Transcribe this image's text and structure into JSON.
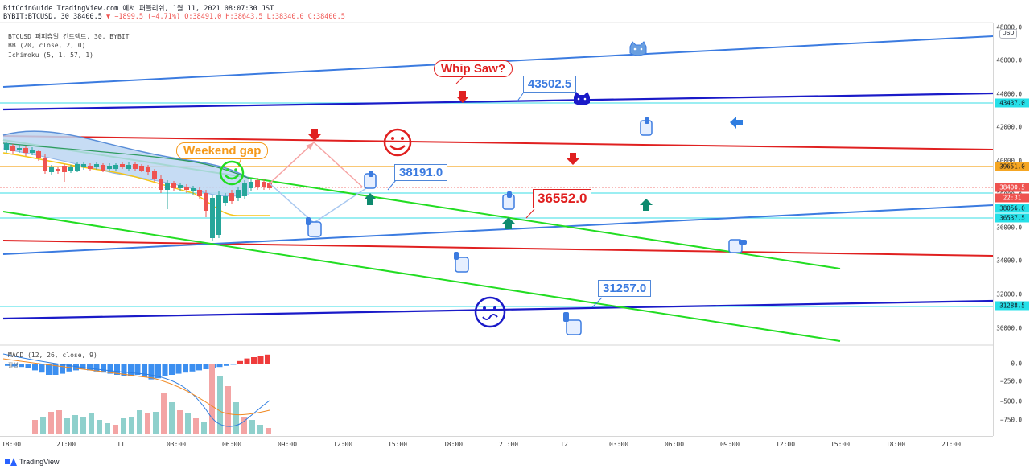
{
  "header": {
    "line1": "BitCoinGuide TradingView.com 에서 퍼블리쉬, 1월 11, 2021 08:07:30 JST",
    "symbol": "BYBIT:BTCUSD, 30",
    "last": "38400.5",
    "change": "−1899.5 (−4.71%)",
    "o": "O:38491.0",
    "h": "H:38643.5",
    "l": "L:38340.0",
    "c": "C:38400.5"
  },
  "legend": {
    "main": "BTCUSD 퍼피츄얼 컨트랙트, 30, BYBIT",
    "bb": "BB (20, close, 2, 0)",
    "ichimoku": "Ichimoku (5, 1, 57, 1)"
  },
  "macd": {
    "label": "MACD (12, 26, close, 9)",
    "sub": "활성"
  },
  "price_axis": {
    "currency_button": "USD",
    "ticks": [
      "48000.0",
      "46000.0",
      "44000.0",
      "42000.0",
      "40000.0",
      "38000.0",
      "36000.0",
      "34000.0",
      "32000.0",
      "30000.0"
    ],
    "macd_ticks": [
      "0.0",
      "−250.0",
      "−500.0",
      "−750.0"
    ],
    "tags": [
      {
        "value": "43437.0",
        "bg": "#26e0e8",
        "fg": "#131722"
      },
      {
        "value": "39651.0",
        "bg": "#f5a623",
        "fg": "#131722"
      },
      {
        "value": "38400.5",
        "bg": "#ef5350",
        "fg": "#ffffff"
      },
      {
        "value": "22:31",
        "bg": "#ef5350",
        "fg": "#ffffff"
      },
      {
        "value": "38056.0",
        "bg": "#26e0e8",
        "fg": "#131722"
      },
      {
        "value": "36537.5",
        "bg": "#26e0e8",
        "fg": "#131722"
      },
      {
        "value": "31288.5",
        "bg": "#26e0e8",
        "fg": "#131722"
      }
    ]
  },
  "time_axis": [
    "18:00",
    "21:00",
    "11",
    "03:00",
    "06:00",
    "09:00",
    "12:00",
    "15:00",
    "18:00",
    "21:00",
    "12",
    "03:00",
    "06:00",
    "09:00",
    "12:00",
    "15:00",
    "18:00",
    "21:00"
  ],
  "annotations": {
    "whip_saw": "Whip Saw?",
    "weekend_gap": "Weekend gap",
    "p43502": "43502.5",
    "p38191": "38191.0",
    "p36552": "36552.0",
    "p31257": "31257.0"
  },
  "footer": {
    "brand": "TradingView"
  },
  "colors": {
    "bull": "#26a69a",
    "bear": "#ef5350",
    "blue_line": "#3b7be0",
    "navy_line": "#1a1ac8",
    "red_line": "#e02020",
    "green_line": "#22dd22",
    "cyan_level": "#5fe3ea",
    "orange_level": "#f5a623"
  }
}
